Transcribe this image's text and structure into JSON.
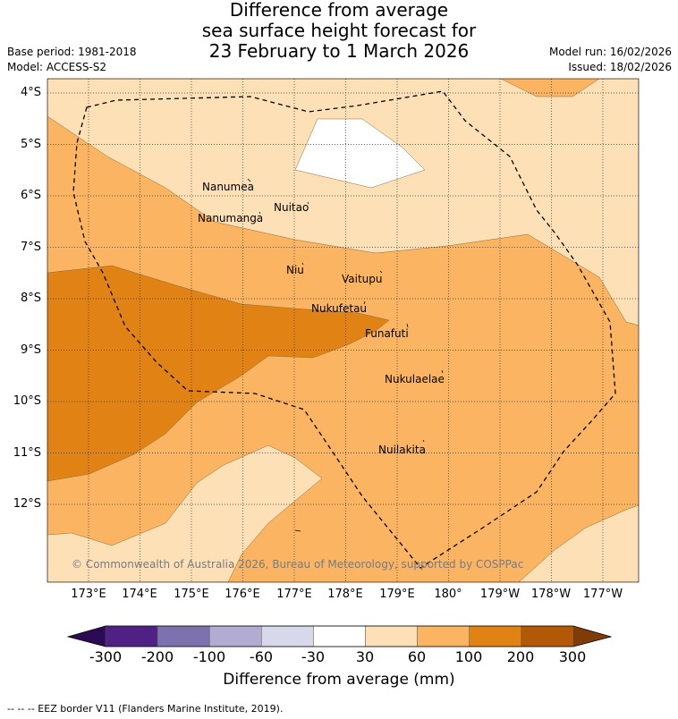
{
  "title": {
    "line1": "Difference from average",
    "line2": "sea surface height forecast for",
    "line3": "23 February to 1 March 2026"
  },
  "meta": {
    "base_period": "Base period: 1981-2018",
    "model": "Model: ACCESS-S2",
    "model_run": "Model run: 16/02/2026",
    "issued": "Issued: 18/02/2026"
  },
  "axes": {
    "lat_labels": [
      "4°S",
      "5°S",
      "6°S",
      "7°S",
      "8°S",
      "9°S",
      "10°S",
      "11°S",
      "12°S"
    ],
    "lon_labels": [
      "173°E",
      "174°E",
      "175°E",
      "176°E",
      "177°E",
      "178°E",
      "179°E",
      "180°",
      "179°W",
      "178°W",
      "177°W"
    ]
  },
  "places": {
    "nanumea": "Nanumea",
    "nanumanga": "Nanumanga",
    "nuitao": "Nuitao",
    "niu": "Niu",
    "vaitupu": "Vaitupu",
    "nukufetau": "Nukufetau",
    "funafuti": "Funafuti",
    "nukulaelae": "Nukulaelae",
    "nuilakita": "Nuilakita"
  },
  "copyright": "© Commonwealth of Australia 2026, Bureau of Meteorology, supported by COSPPac",
  "colorbar": {
    "title": "Difference from average (mm)",
    "labels": [
      "-300",
      "-200",
      "-100",
      "-60",
      "-30",
      "30",
      "60",
      "100",
      "200",
      "300"
    ],
    "colors": [
      "#2d0a54",
      "#4f2185",
      "#7e72ae",
      "#b2abd2",
      "#d8d8eb",
      "#ffffff",
      "#fde0b6",
      "#fbb562",
      "#e08214",
      "#b35806",
      "#7f3b08"
    ]
  },
  "footer": "-- -- -- EEZ border V11 (Flanders Marine Institute, 2019)."
}
